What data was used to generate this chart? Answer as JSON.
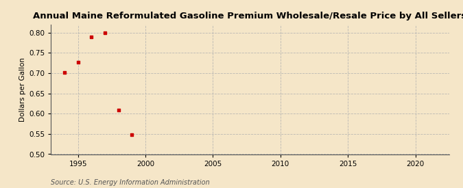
{
  "title": "Annual Maine Reformulated Gasoline Premium Wholesale/Resale Price by All Sellers",
  "ylabel": "Dollars per Gallon",
  "source": "Source: U.S. Energy Information Administration",
  "x_data": [
    1994,
    1995,
    1996,
    1997,
    1998,
    1999
  ],
  "y_data": [
    0.701,
    0.727,
    0.789,
    0.8,
    0.609,
    0.548
  ],
  "xlim": [
    1993.0,
    2022.5
  ],
  "ylim": [
    0.5,
    0.82
  ],
  "xticks": [
    1995,
    2000,
    2005,
    2010,
    2015,
    2020
  ],
  "yticks": [
    0.5,
    0.55,
    0.6,
    0.65,
    0.7,
    0.75,
    0.8
  ],
  "marker_color": "#cc0000",
  "marker": "s",
  "marker_size": 3.5,
  "background_color": "#f5e6c8",
  "grid_color": "#b0b0b0",
  "title_fontsize": 9.5,
  "label_fontsize": 7.5,
  "tick_fontsize": 7.5,
  "source_fontsize": 7.0
}
